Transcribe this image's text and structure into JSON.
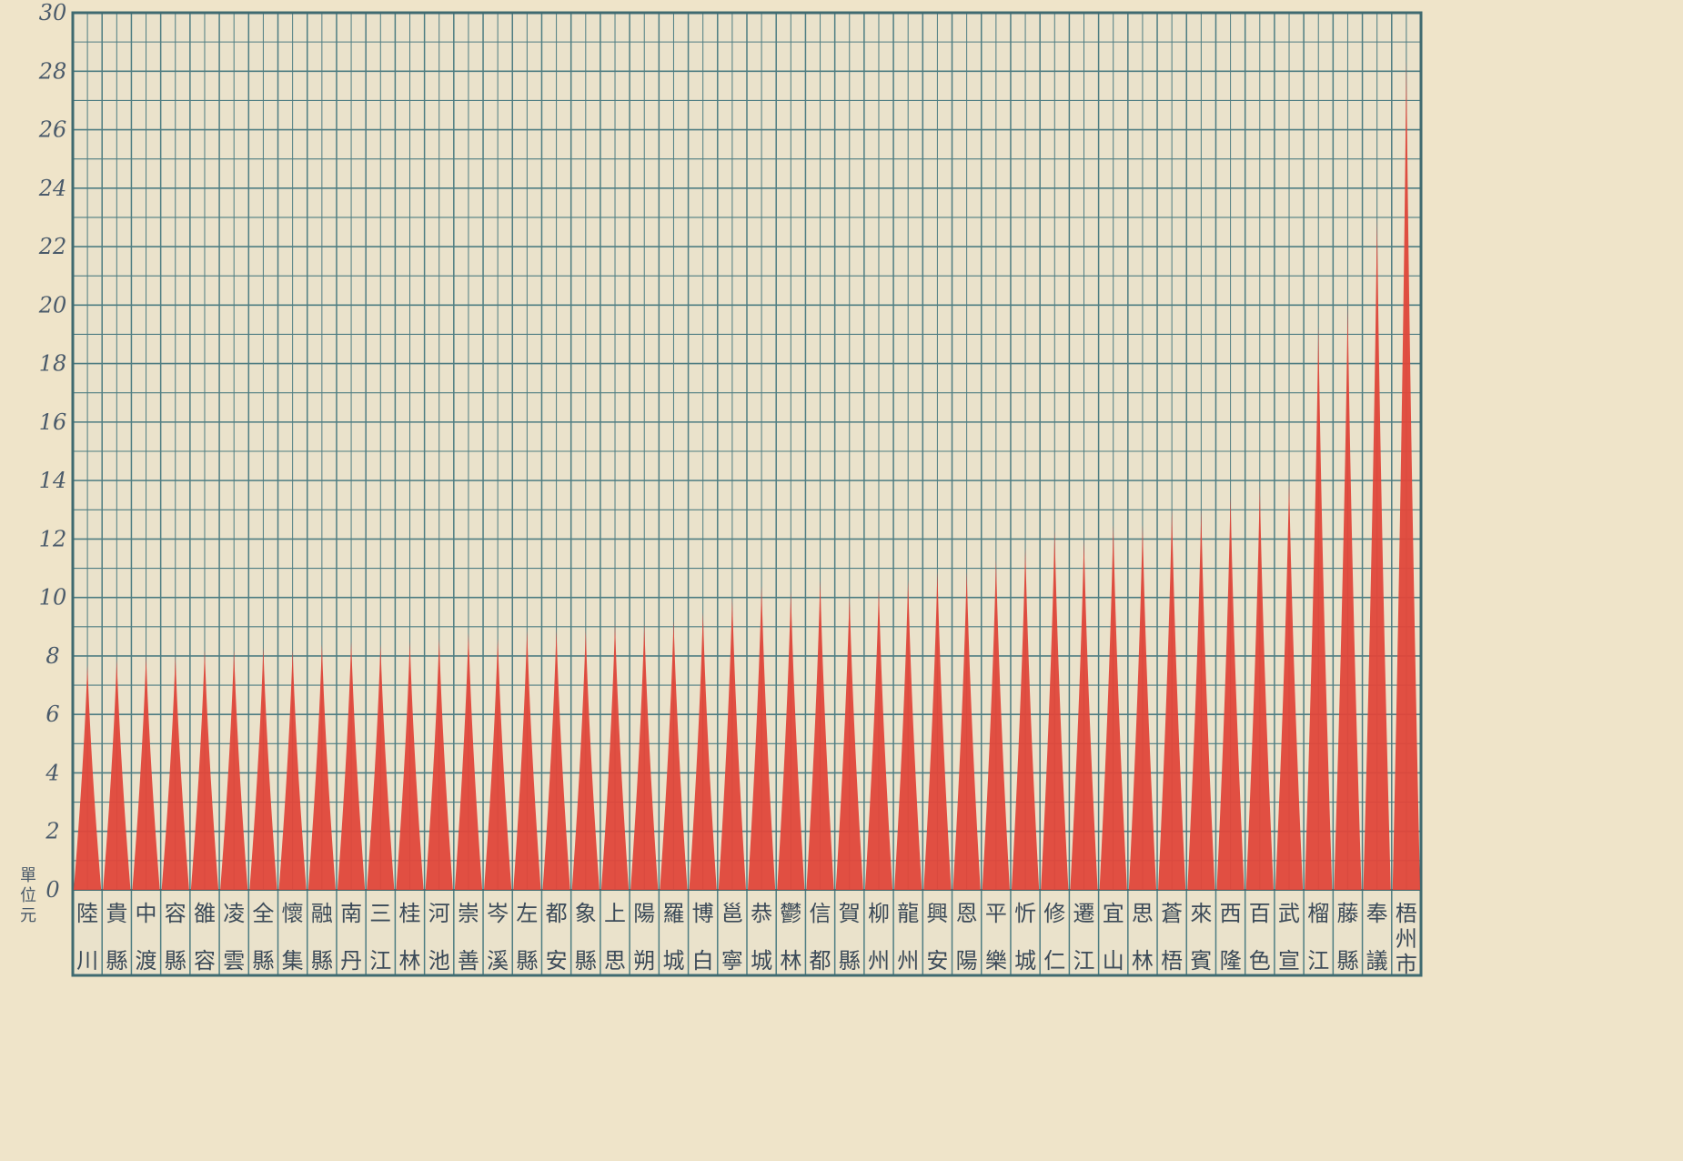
{
  "chart_data": {
    "type": "bar",
    "title": "",
    "xlabel": "",
    "ylabel": "單位元",
    "ylim": [
      0,
      30
    ],
    "yticks": [
      0,
      2,
      4,
      6,
      8,
      10,
      12,
      14,
      16,
      18,
      20,
      22,
      24,
      26,
      28,
      30
    ],
    "grid": true,
    "categories": [
      {
        "top": "陸",
        "bottom": "川"
      },
      {
        "top": "貴",
        "bottom": "縣"
      },
      {
        "top": "中",
        "bottom": "渡"
      },
      {
        "top": "容",
        "bottom": "縣"
      },
      {
        "top": "雒",
        "bottom": "容"
      },
      {
        "top": "凌",
        "bottom": "雲"
      },
      {
        "top": "全",
        "bottom": "縣"
      },
      {
        "top": "懷",
        "bottom": "集"
      },
      {
        "top": "融",
        "bottom": "縣"
      },
      {
        "top": "南",
        "bottom": "丹"
      },
      {
        "top": "三",
        "bottom": "江"
      },
      {
        "top": "桂",
        "bottom": "林"
      },
      {
        "top": "河",
        "bottom": "池"
      },
      {
        "top": "崇",
        "bottom": "善"
      },
      {
        "top": "岑",
        "bottom": "溪"
      },
      {
        "top": "左",
        "bottom": "縣"
      },
      {
        "top": "都",
        "bottom": "安"
      },
      {
        "top": "象",
        "bottom": "縣"
      },
      {
        "top": "上",
        "bottom": "思"
      },
      {
        "top": "陽",
        "bottom": "朔"
      },
      {
        "top": "羅",
        "bottom": "城"
      },
      {
        "top": "博",
        "bottom": "白"
      },
      {
        "top": "邕",
        "bottom": "寧"
      },
      {
        "top": "恭",
        "bottom": "城"
      },
      {
        "top": "鬱",
        "bottom": "林"
      },
      {
        "top": "信",
        "bottom": "都"
      },
      {
        "top": "賀",
        "bottom": "縣"
      },
      {
        "top": "柳",
        "bottom": "州"
      },
      {
        "top": "龍",
        "bottom": "州"
      },
      {
        "top": "興",
        "bottom": "安"
      },
      {
        "top": "恩",
        "bottom": "陽"
      },
      {
        "top": "平",
        "bottom": "樂"
      },
      {
        "top": "忻",
        "bottom": "城"
      },
      {
        "top": "修",
        "bottom": "仁"
      },
      {
        "top": "遷",
        "bottom": "江"
      },
      {
        "top": "宜",
        "bottom": "山"
      },
      {
        "top": "思",
        "bottom": "林"
      },
      {
        "top": "蒼",
        "bottom": "梧"
      },
      {
        "top": "來",
        "bottom": "賓"
      },
      {
        "top": "西",
        "bottom": "隆"
      },
      {
        "top": "百",
        "bottom": "色"
      },
      {
        "top": "武",
        "bottom": "宣"
      },
      {
        "top": "榴",
        "bottom": "江"
      },
      {
        "top": "藤",
        "bottom": "縣"
      },
      {
        "top": "奉",
        "bottom": "議"
      },
      {
        "top": "梧州市",
        "bottom": ""
      }
    ],
    "values": [
      7.7,
      7.9,
      8.0,
      8.0,
      8.2,
      8.2,
      8.3,
      8.2,
      8.4,
      8.5,
      8.4,
      8.5,
      8.6,
      8.8,
      8.6,
      8.9,
      8.9,
      8.9,
      9.1,
      9.1,
      9.2,
      9.5,
      10.0,
      10.4,
      10.2,
      10.6,
      10.1,
      10.3,
      10.6,
      10.9,
      10.9,
      11.3,
      11.7,
      12.3,
      12.0,
      12.5,
      12.5,
      13.0,
      13.0,
      13.5,
      13.8,
      14.0,
      19.3,
      20.0,
      23.0,
      28.4
    ],
    "colors": {
      "spike": "#e0473a",
      "grid": "#4e7d82",
      "axis": "#3f6a70",
      "labels": "#4a5a6a",
      "background": "#efe4c9",
      "plot_background": "#eae2cb"
    }
  }
}
